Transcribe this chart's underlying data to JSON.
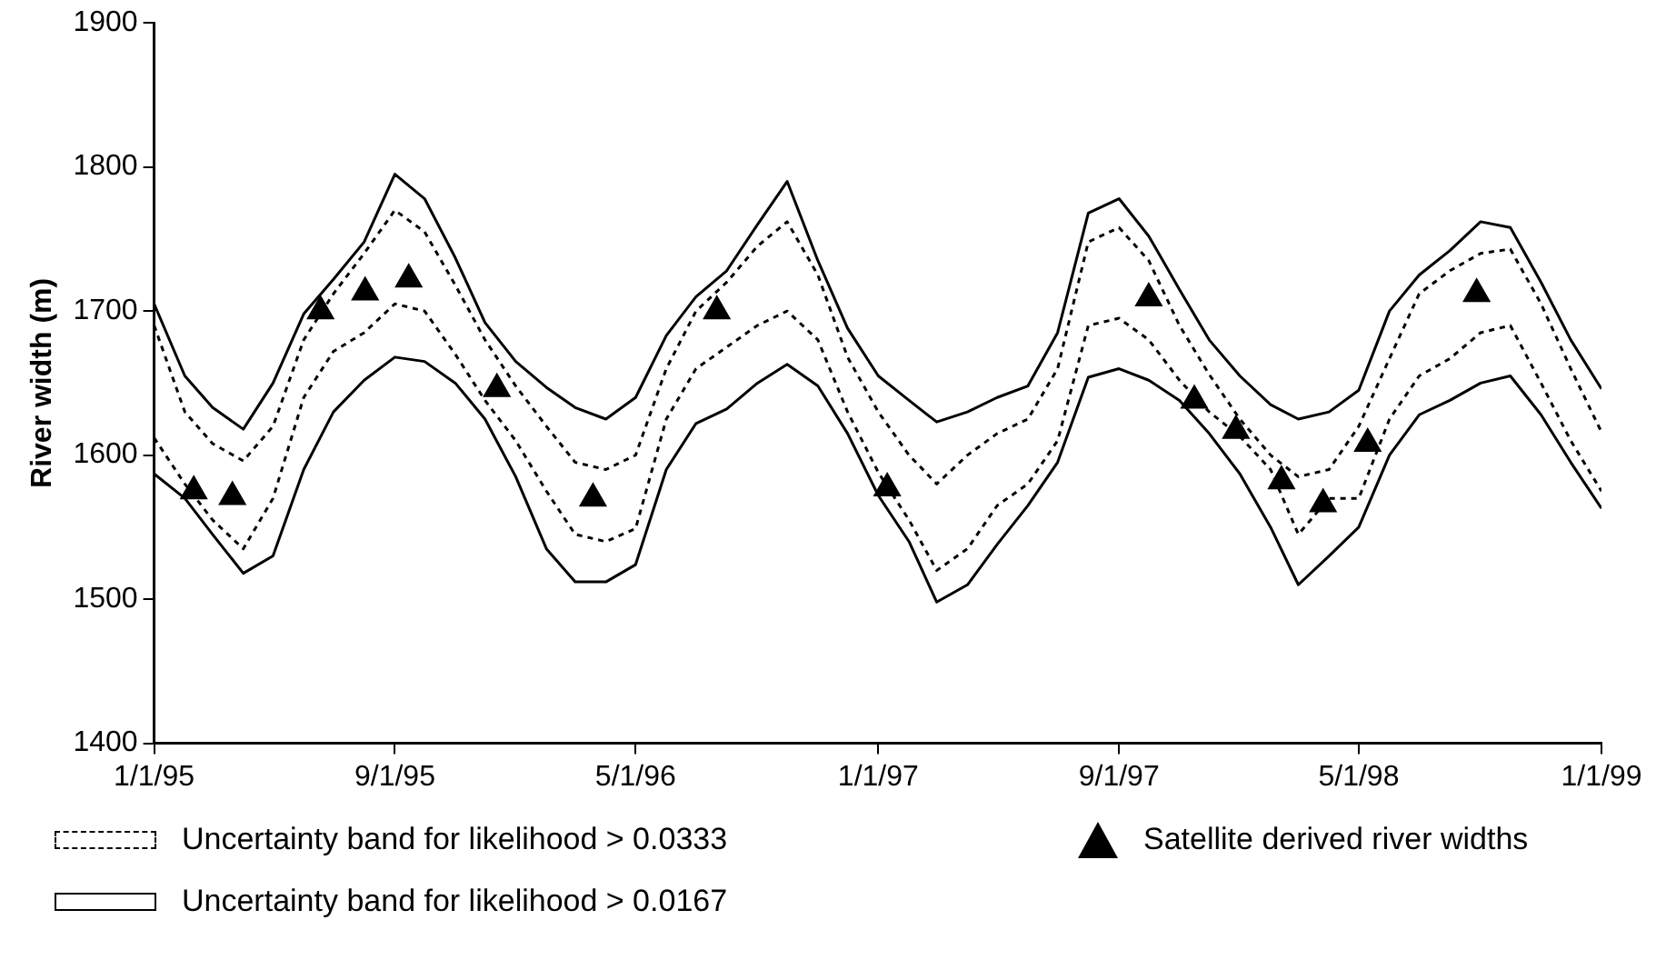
{
  "chart_data": {
    "type": "line",
    "ylabel": "River width (m)",
    "x": [
      "1995-01-01",
      "1995-02-01",
      "1995-03-01",
      "1995-04-01",
      "1995-05-01",
      "1995-06-01",
      "1995-07-01",
      "1995-08-01",
      "1995-09-01",
      "1995-10-01",
      "1995-11-01",
      "1995-12-01",
      "1996-01-01",
      "1996-02-01",
      "1996-03-01",
      "1996-04-01",
      "1996-05-01",
      "1996-06-01",
      "1996-07-01",
      "1996-08-01",
      "1996-09-01",
      "1996-10-01",
      "1996-11-01",
      "1996-12-01",
      "1997-01-01",
      "1997-02-01",
      "1997-03-01",
      "1997-04-01",
      "1997-05-01",
      "1997-06-01",
      "1997-07-01",
      "1997-08-01",
      "1997-09-01",
      "1997-10-01",
      "1997-11-01",
      "1997-12-01",
      "1998-01-01",
      "1998-02-01",
      "1998-03-01",
      "1998-04-01",
      "1998-05-01",
      "1998-06-01",
      "1998-07-01",
      "1998-08-01",
      "1998-09-01",
      "1998-10-01",
      "1998-11-01",
      "1998-12-01",
      "1999-01-01"
    ],
    "series": [
      {
        "name": "Uncertainty band for likelihood > 0.0333",
        "color": "#000000",
        "line_style": "dashed",
        "values": [
          1690,
          1630,
          1608,
          1596,
          1620,
          1680,
          1712,
          1740,
          1770,
          1755,
          1718,
          1680,
          1648,
          1620,
          1595,
          1590,
          1600,
          1660,
          1700,
          1720,
          1745,
          1762,
          1725,
          1668,
          1630,
          1600,
          1580,
          1600,
          1615,
          1625,
          1660,
          1748,
          1758,
          1735,
          1690,
          1656,
          1625,
          1600,
          1585,
          1590,
          1620,
          1667,
          1712,
          1728,
          1740,
          1743,
          1705,
          1660,
          1616
        ]
      },
      {
        "color": "#000000",
        "line_style": "dashed",
        "values": [
          1612,
          1580,
          1555,
          1535,
          1570,
          1640,
          1672,
          1685,
          1705,
          1700,
          1670,
          1638,
          1610,
          1575,
          1545,
          1540,
          1549,
          1625,
          1660,
          1675,
          1690,
          1700,
          1680,
          1630,
          1588,
          1555,
          1520,
          1535,
          1565,
          1580,
          1610,
          1690,
          1695,
          1680,
          1652,
          1630,
          1613,
          1590,
          1545,
          1570,
          1570,
          1625,
          1655,
          1667,
          1685,
          1690,
          1650,
          1610,
          1575
        ]
      },
      {
        "name": "Uncertainty band for likelihood > 0.0167",
        "color": "#000000",
        "line_style": "solid",
        "values": [
          1705,
          1655,
          1633,
          1618,
          1650,
          1698,
          1722,
          1748,
          1795,
          1778,
          1737,
          1692,
          1665,
          1647,
          1633,
          1625,
          1640,
          1683,
          1710,
          1728,
          1760,
          1790,
          1735,
          1688,
          1655,
          1638,
          1623,
          1630,
          1640,
          1648,
          1685,
          1768,
          1778,
          1752,
          1715,
          1680,
          1655,
          1635,
          1625,
          1630,
          1645,
          1700,
          1725,
          1742,
          1762,
          1758,
          1720,
          1680,
          1646
        ]
      },
      {
        "color": "#000000",
        "line_style": "solid",
        "values": [
          1587,
          1570,
          1545,
          1518,
          1530,
          1590,
          1630,
          1652,
          1668,
          1665,
          1650,
          1625,
          1585,
          1535,
          1512,
          1512,
          1524,
          1590,
          1622,
          1632,
          1650,
          1663,
          1648,
          1615,
          1572,
          1540,
          1498,
          1510,
          1538,
          1565,
          1595,
          1654,
          1660,
          1652,
          1638,
          1615,
          1587,
          1550,
          1510,
          1530,
          1550,
          1600,
          1628,
          1638,
          1650,
          1655,
          1628,
          1595,
          1563
        ]
      },
      {
        "name": "Satellite derived river widths",
        "type": "scatter",
        "marker": "triangle",
        "color": "#000000",
        "x": [
          "1995-02-10",
          "1995-03-21",
          "1995-06-18",
          "1995-08-02",
          "1995-09-15",
          "1995-12-13",
          "1996-03-19",
          "1996-07-22",
          "1997-01-10",
          "1997-10-01",
          "1997-11-16",
          "1997-12-28",
          "1998-02-12",
          "1998-03-26",
          "1998-05-10",
          "1998-08-28"
        ],
        "values": [
          1575,
          1571,
          1700,
          1713,
          1722,
          1646,
          1570,
          1700,
          1577,
          1709,
          1638,
          1617,
          1582,
          1566,
          1608,
          1712
        ]
      }
    ],
    "xlim": [
      "1995-01-01",
      "1999-01-01"
    ],
    "xticks": [
      {
        "value": "1995-01-01",
        "label": "1/1/95"
      },
      {
        "value": "1995-09-01",
        "label": "9/1/95"
      },
      {
        "value": "1996-05-01",
        "label": "5/1/96"
      },
      {
        "value": "1997-01-01",
        "label": "1/1/97"
      },
      {
        "value": "1997-09-01",
        "label": "9/1/97"
      },
      {
        "value": "1998-05-01",
        "label": "5/1/98"
      },
      {
        "value": "1999-01-01",
        "label": "1/1/99"
      }
    ],
    "ylim": [
      1400,
      1900
    ],
    "yticks": [
      1400,
      1500,
      1600,
      1700,
      1800,
      1900
    ],
    "grid": false,
    "legend": "bottom"
  }
}
